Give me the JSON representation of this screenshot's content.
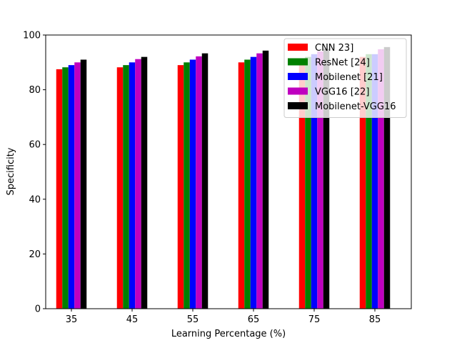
{
  "chart_data": {
    "type": "bar",
    "title": "",
    "xlabel": "Learning Percentage (%)",
    "ylabel": "Specificity",
    "categories": [
      "35",
      "45",
      "55",
      "65",
      "75",
      "85"
    ],
    "ylim": [
      0,
      100
    ],
    "yticks": [
      0,
      20,
      40,
      60,
      80,
      100
    ],
    "grid": false,
    "legend_position": "top-right",
    "series": [
      {
        "name": "CNN 23]",
        "color": "#ff0000",
        "values": [
          87.5,
          88.2,
          89.0,
          90.0,
          91.0,
          92.0
        ]
      },
      {
        "name": "ResNet [24]",
        "color": "#008000",
        "values": [
          88.2,
          89.0,
          90.0,
          91.0,
          92.0,
          93.0
        ]
      },
      {
        "name": "Mobilenet [21]",
        "color": "#0000ff",
        "values": [
          89.0,
          90.0,
          91.0,
          92.0,
          93.0,
          93.0
        ]
      },
      {
        "name": "VGG16 [22]",
        "color": "#bf00bf",
        "values": [
          90.0,
          91.2,
          92.2,
          93.3,
          94.0,
          94.8
        ]
      },
      {
        "name": "Mobilenet-VGG16",
        "color": "#000000",
        "values": [
          91.0,
          92.0,
          93.3,
          94.3,
          95.0,
          95.6
        ]
      }
    ]
  }
}
